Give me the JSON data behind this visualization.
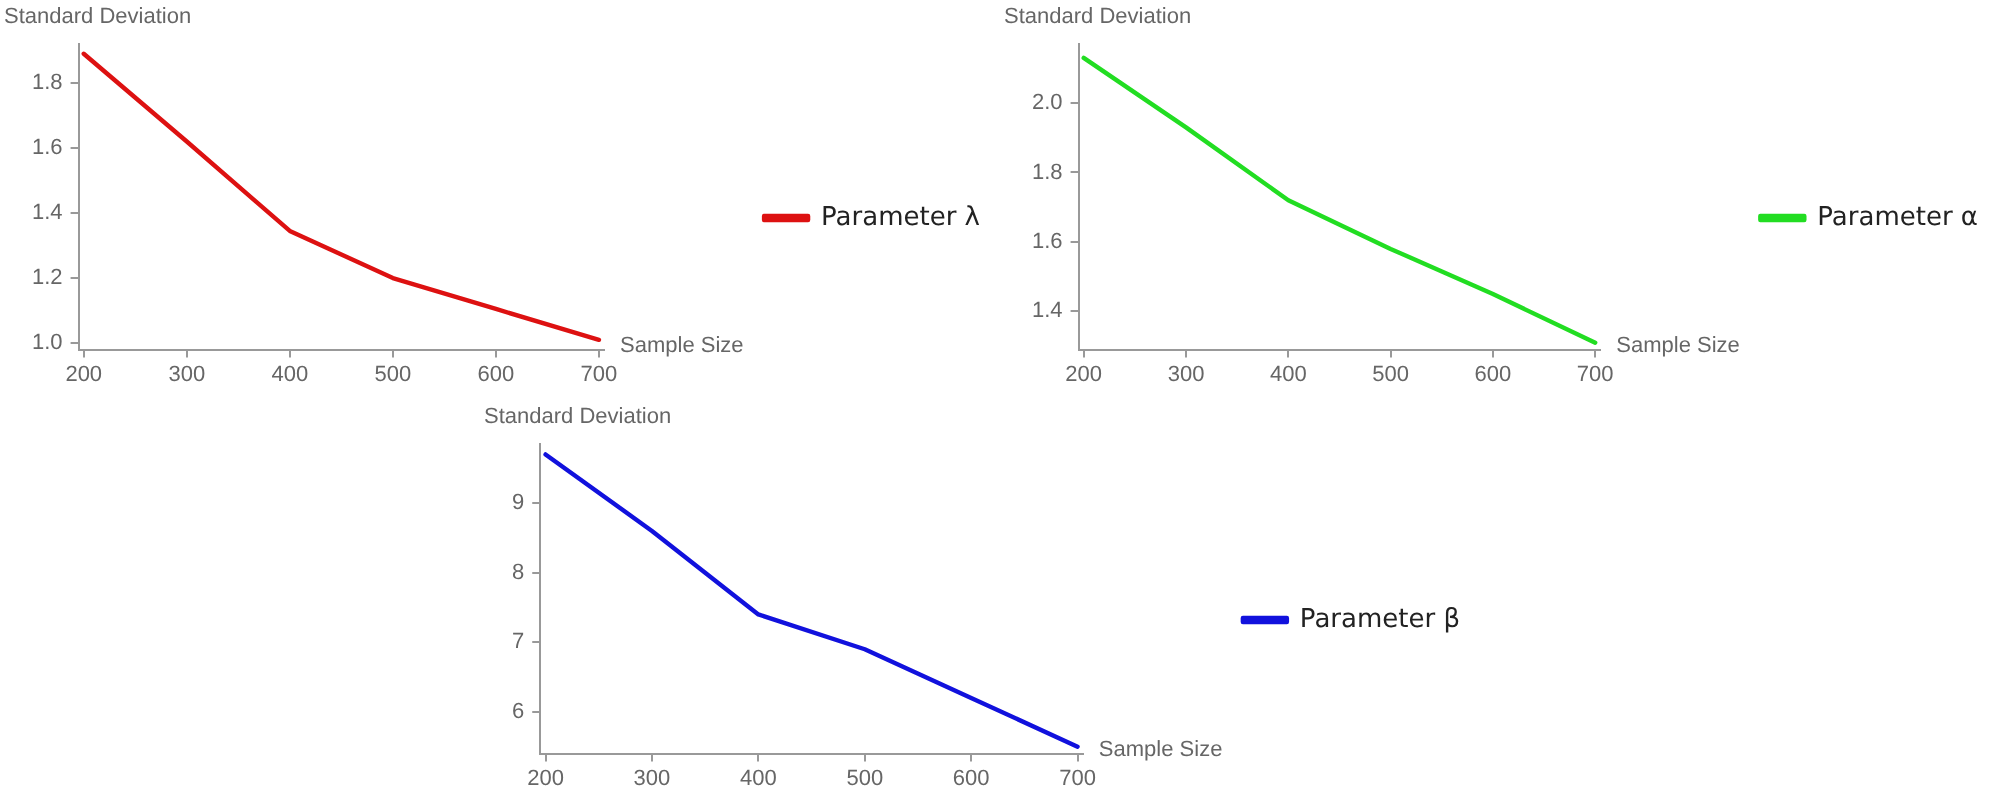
{
  "chart_data": [
    {
      "type": "line",
      "xlabel": "Sample Size",
      "ylabel": "Standard Deviation",
      "x": [
        200,
        300,
        400,
        500,
        600,
        700
      ],
      "xlim": [
        195,
        705
      ],
      "xticks": [
        200,
        300,
        400,
        500,
        600,
        700
      ],
      "ylim": [
        0.98,
        1.92
      ],
      "yticks": [
        {
          "value": 1.0,
          "label": "1.0"
        },
        1.2,
        1.4,
        1.6,
        1.8
      ],
      "grid": false,
      "legend": "right",
      "marker": "none",
      "series": [
        {
          "name": "Parameter λ",
          "color": "#dd1111",
          "values": [
            1.89,
            1.62,
            1.345,
            1.2,
            1.105,
            1.01
          ]
        }
      ]
    },
    {
      "type": "line",
      "xlabel": "Sample Size",
      "ylabel": "Standard Deviation",
      "x": [
        200,
        300,
        400,
        500,
        600,
        700
      ],
      "xlim": [
        195,
        705
      ],
      "xticks": [
        200,
        300,
        400,
        500,
        600,
        700
      ],
      "ylim": [
        1.29,
        2.17
      ],
      "yticks": [
        1.4,
        1.6,
        1.8,
        {
          "value": 2.0,
          "label": "2.0"
        }
      ],
      "grid": false,
      "legend": "right",
      "marker": "none",
      "series": [
        {
          "name": "Parameter α",
          "color": "#22dd22",
          "values": [
            2.13,
            1.93,
            1.72,
            1.58,
            1.45,
            1.31
          ]
        }
      ]
    },
    {
      "type": "line",
      "xlabel": "Sample Size",
      "ylabel": "Standard Deviation",
      "x": [
        200,
        300,
        400,
        500,
        600,
        700
      ],
      "xlim": [
        195,
        705
      ],
      "xticks": [
        200,
        300,
        400,
        500,
        600,
        700
      ],
      "ylim": [
        5.4,
        9.85
      ],
      "yticks": [
        6,
        7,
        8,
        9
      ],
      "grid": false,
      "legend": "right",
      "marker": "none",
      "series": [
        {
          "name": "Parameter β",
          "color": "#1111dd",
          "values": [
            9.7,
            8.6,
            7.4,
            6.9,
            6.2,
            5.5
          ]
        }
      ]
    }
  ]
}
